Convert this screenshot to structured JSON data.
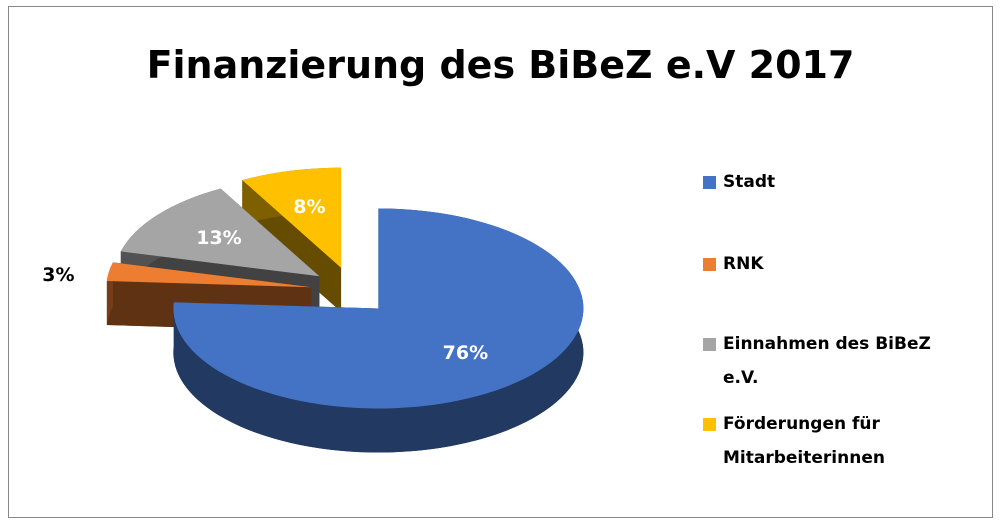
{
  "chart_data": {
    "type": "pie",
    "title": "Finanzierung des BiBeZ e.V 2017",
    "categories": [
      "Stadt",
      "RNK",
      "Einnahmen des BiBeZ e.V.",
      "Förderungen für Mitarbeiterinnen"
    ],
    "values": [
      76,
      3,
      13,
      8
    ],
    "value_labels": [
      "76%",
      "3%",
      "13%",
      "8%"
    ],
    "colors": [
      "#4472c4",
      "#ed7d31",
      "#a5a5a5",
      "#ffc000"
    ],
    "legend": "right"
  }
}
